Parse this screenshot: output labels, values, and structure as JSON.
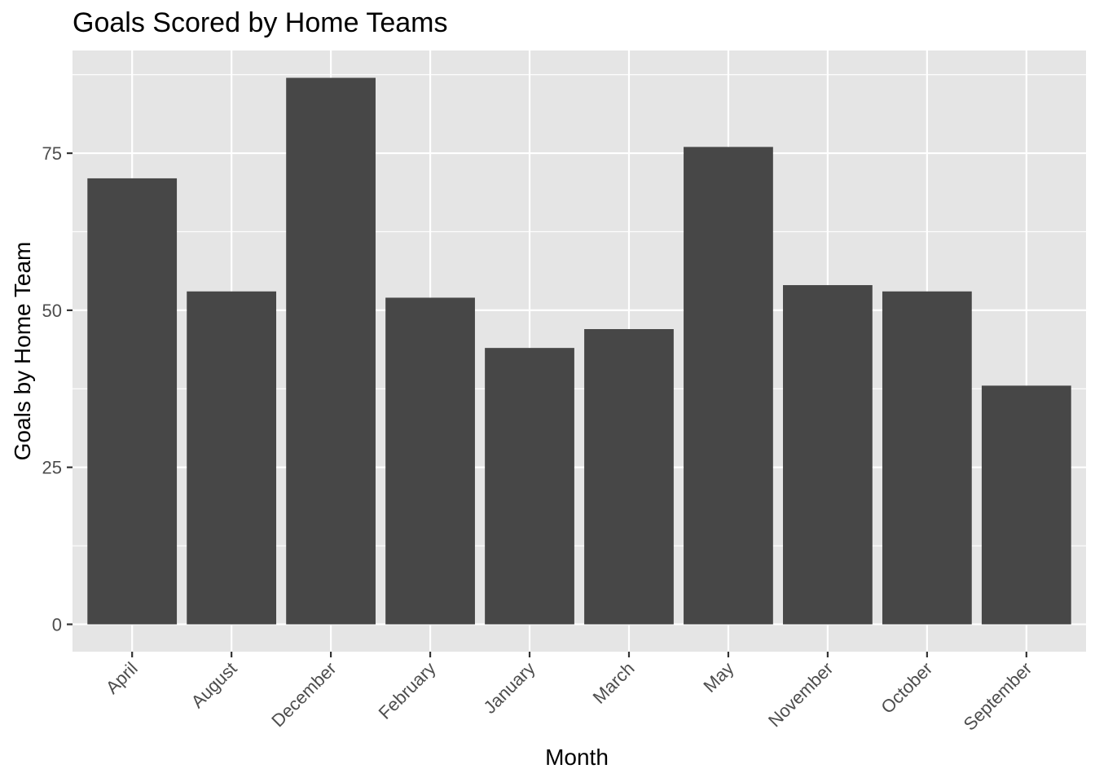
{
  "chart_data": {
    "type": "bar",
    "title": "Goals Scored by Home Teams",
    "xlabel": "Month",
    "ylabel": "Goals by Home Team",
    "categories": [
      "April",
      "August",
      "December",
      "February",
      "January",
      "March",
      "May",
      "November",
      "October",
      "September"
    ],
    "values": [
      71,
      53,
      87,
      52,
      44,
      47,
      76,
      54,
      53,
      38
    ],
    "ylim": [
      -4.35,
      91.35
    ],
    "yticks": [
      0,
      25,
      50,
      75
    ],
    "y_minor_ticks": [
      12.5,
      37.5,
      62.5,
      87.5
    ],
    "grid": true,
    "x_tick_rotation_deg": 45,
    "colors": {
      "bar": "#474747",
      "panel_background": "#e5e5e5",
      "grid_line": "#ffffff",
      "tick_label": "#4d4d4d",
      "tick_mark": "#333333"
    }
  }
}
